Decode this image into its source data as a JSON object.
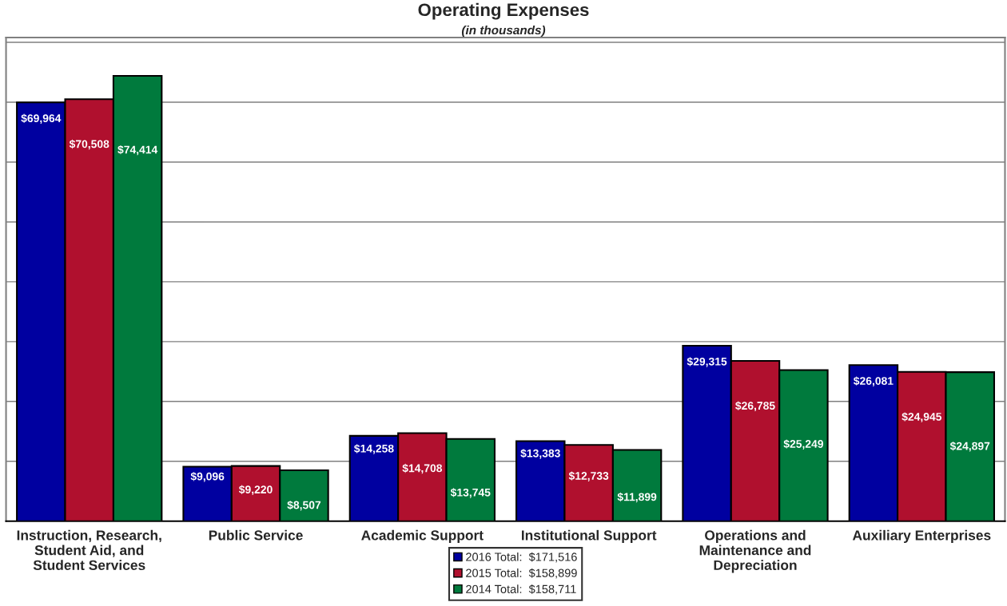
{
  "chart_data": {
    "type": "bar",
    "title": "Operating Expenses",
    "subtitle": "(in thousands)",
    "categories": [
      "Instruction, Research,\nStudent Aid, and\nStudent Services",
      "Public Service",
      "Academic Support",
      "Institutional Support",
      "Operations and\nMaintenance and\nDepreciation",
      "Auxiliary Enterprises"
    ],
    "series": [
      {
        "name": "2016 Total:  $171,516",
        "color": "#0000a0",
        "values": [
          69964,
          9096,
          14258,
          13383,
          29315,
          26081
        ],
        "value_labels": [
          "$69,964",
          "$9,096",
          "$14,258",
          "$13,383",
          "$29,315",
          "$26,081"
        ]
      },
      {
        "name": "2015 Total:  $158,899",
        "color": "#b0102e",
        "values": [
          70508,
          9220,
          14708,
          12733,
          26785,
          24945
        ],
        "value_labels": [
          "$70,508",
          "$9,220",
          "$14,708",
          "$12,733",
          "$26,785",
          "$24,945"
        ]
      },
      {
        "name": "2014 Total:  $158,711",
        "color": "#007a3d",
        "values": [
          74414,
          8507,
          13745,
          11899,
          25249,
          24897
        ],
        "value_labels": [
          "$74,414",
          "$8,507",
          "$13,745",
          "$11,899",
          "$25,249",
          "$24,897"
        ]
      }
    ],
    "ylim": [
      0,
      80800
    ],
    "yticks": [
      {
        "value": 0,
        "label": null
      },
      {
        "value": 10000,
        "label": null
      },
      {
        "value": 20000,
        "label": null
      },
      {
        "value": 30000,
        "label": null
      },
      {
        "value": 40000,
        "label": null
      },
      {
        "value": 50000,
        "label": null
      },
      {
        "value": 60000,
        "label": null
      },
      {
        "value": 70000,
        "label": null
      },
      {
        "value": 80000,
        "label": null
      }
    ],
    "grid": "y",
    "legend": "bottom",
    "tick_labels": "x"
  }
}
